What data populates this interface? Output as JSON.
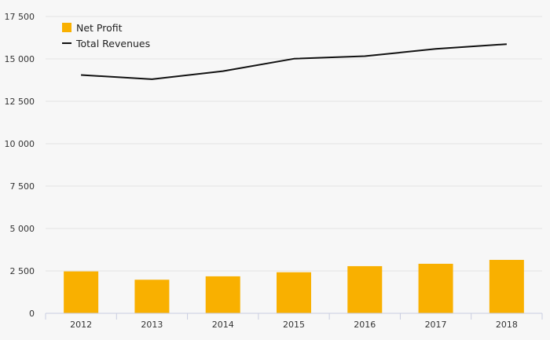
{
  "chart_data": {
    "type": "bar",
    "title": "",
    "xlabel": "",
    "ylabel": "",
    "categories": [
      "2012",
      "2013",
      "2014",
      "2015",
      "2016",
      "2017",
      "2018"
    ],
    "ylim": [
      0,
      17500
    ],
    "yticks": [
      0,
      2500,
      5000,
      7500,
      10000,
      12500,
      15000,
      17500
    ],
    "ytick_labels": [
      "0",
      "2 500",
      "5 000",
      "7 500",
      "10 000",
      "12 500",
      "15 000",
      "17 500"
    ],
    "grid": true,
    "legend_position": "top-left",
    "series": [
      {
        "name": "Net Profit",
        "type": "bar",
        "color": "#f9b000",
        "values": [
          2470,
          1980,
          2180,
          2420,
          2780,
          2920,
          3150
        ]
      },
      {
        "name": "Total Revenues",
        "type": "line",
        "color": "#111111",
        "values": [
          14050,
          13800,
          14280,
          15010,
          15160,
          15590,
          15870
        ]
      }
    ]
  }
}
